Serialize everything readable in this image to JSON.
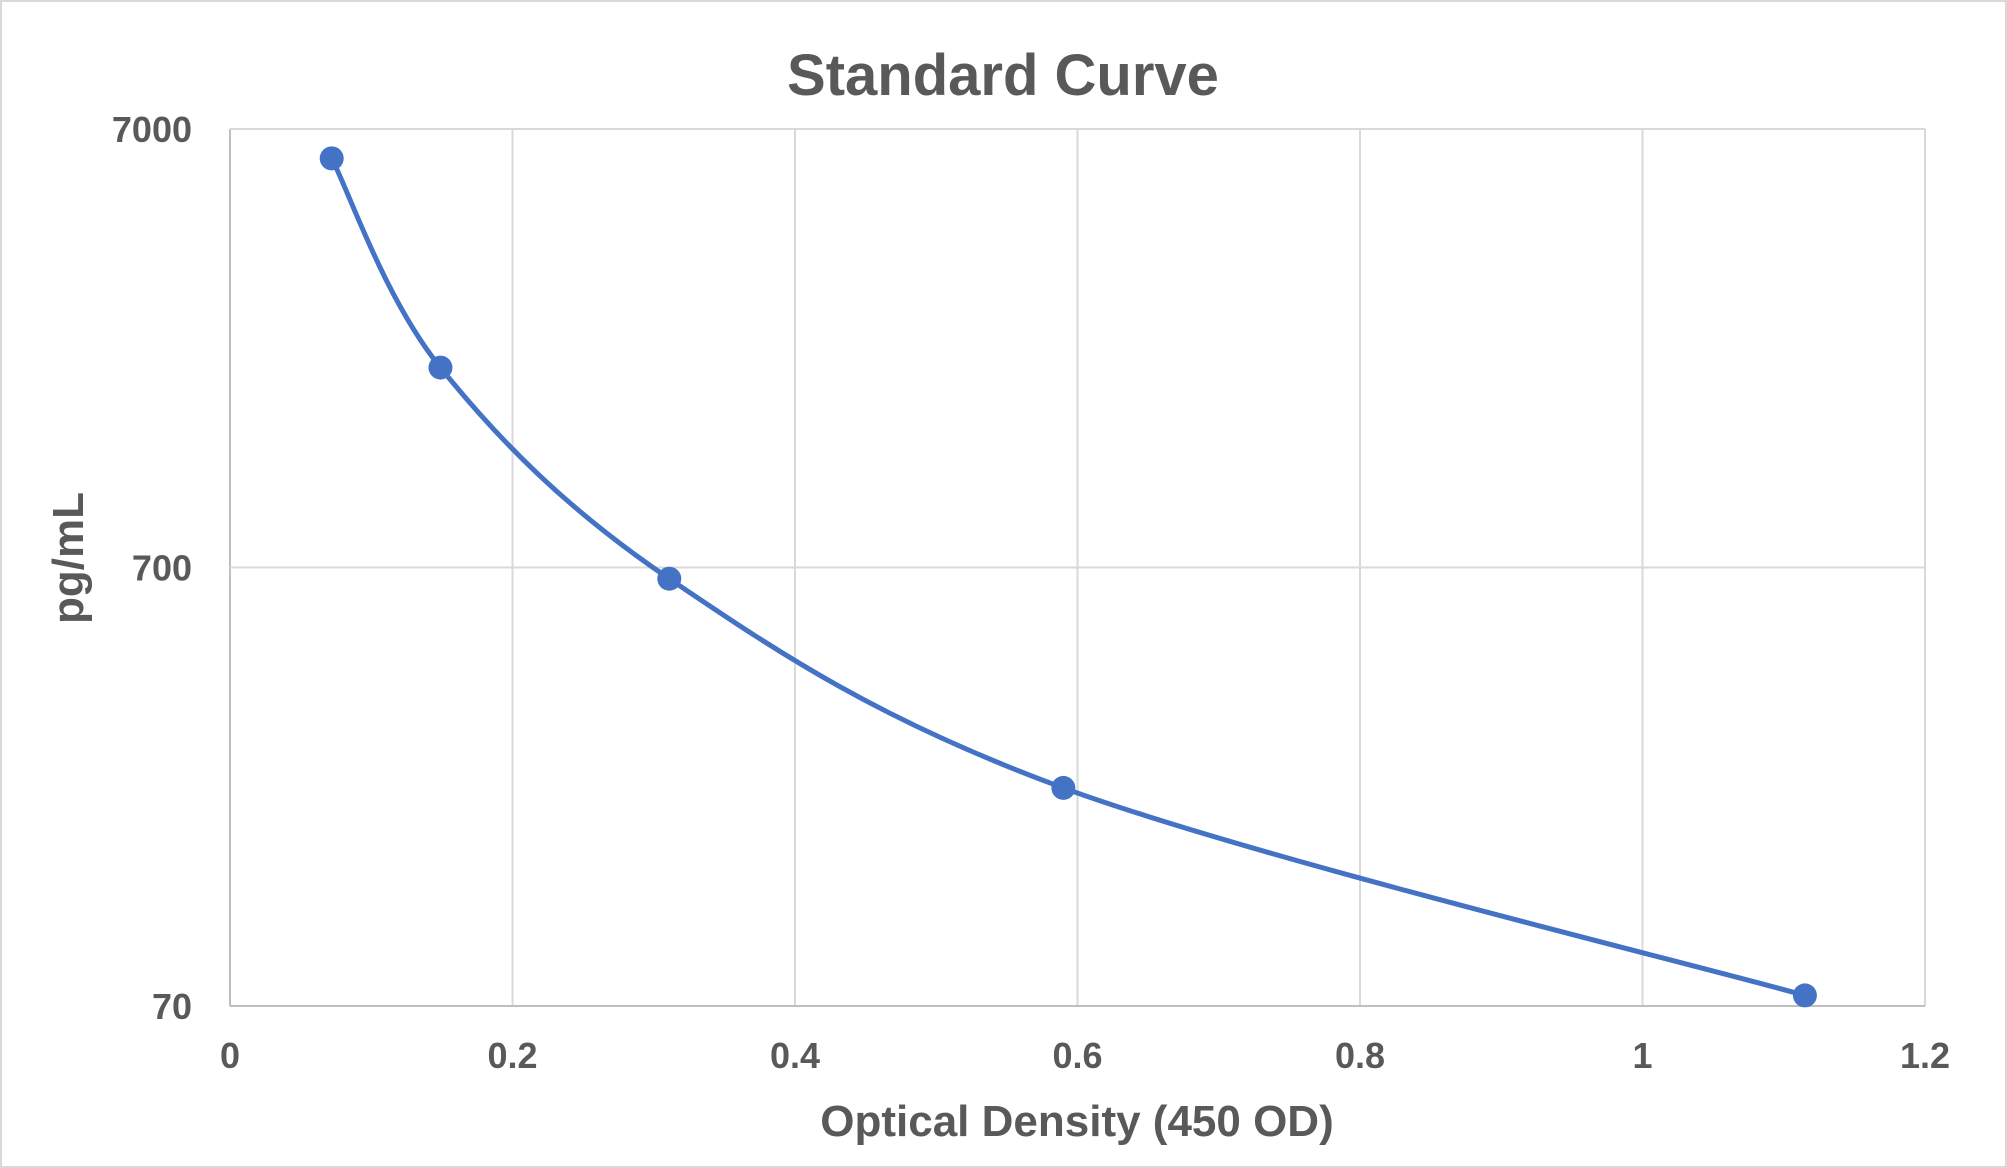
{
  "chart_data": {
    "type": "scatter",
    "title": "Standard Curve",
    "xlabel": "Optical Density (450 OD)",
    "ylabel": "pg/mL",
    "xlim": [
      0,
      1.2
    ],
    "ylim": [
      70,
      7000
    ],
    "y_scale": "log",
    "x_ticks": [
      "0",
      "0.2",
      "0.4",
      "0.6",
      "0.8",
      "1",
      "1.2"
    ],
    "y_ticks": [
      "70",
      "700",
      "7000"
    ],
    "grid": true,
    "smooth_line": true,
    "series": [
      {
        "x": [
          0.072,
          0.149,
          0.311,
          0.59,
          1.115
        ],
        "y": [
          6000,
          2000,
          660,
          220,
          74
        ]
      }
    ],
    "colors": {
      "series": "#4472c4",
      "grid": "#d9d9d9",
      "text": "#595959"
    }
  }
}
